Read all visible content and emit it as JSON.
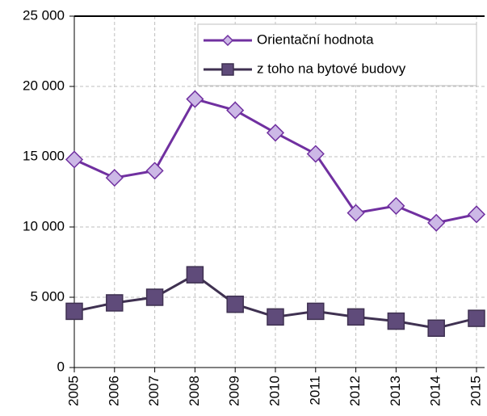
{
  "chart_data": {
    "type": "line",
    "categories": [
      "2005",
      "2006",
      "2007",
      "2008",
      "2009",
      "2010",
      "2011",
      "2012",
      "2013",
      "2014",
      "2015"
    ],
    "series": [
      {
        "name": "Orientační  hodnota",
        "color": "#7030a0",
        "marker_color": "#ccb8e6",
        "marker": "diamond",
        "values": [
          14800,
          13500,
          14000,
          19100,
          18300,
          16700,
          15200,
          11000,
          11500,
          10300,
          10900
        ]
      },
      {
        "name": "z toho na bytové budovy",
        "color": "#3f3151",
        "marker_color": "#5f4b7a",
        "marker": "square",
        "values": [
          4000,
          4600,
          5000,
          6600,
          4500,
          3600,
          4000,
          3600,
          3300,
          2800,
          3500
        ]
      }
    ],
    "ylim": [
      0,
      25000
    ],
    "yticks": [
      0,
      {
        "value": 5000,
        "label": "5 000"
      },
      {
        "value": 10000,
        "label": "10 000"
      },
      {
        "value": 15000,
        "label": "15 000"
      },
      {
        "value": 20000,
        "label": "20 000"
      },
      {
        "value": 25000,
        "label": "25 000"
      }
    ],
    "grid": true,
    "legend": "top-right"
  }
}
